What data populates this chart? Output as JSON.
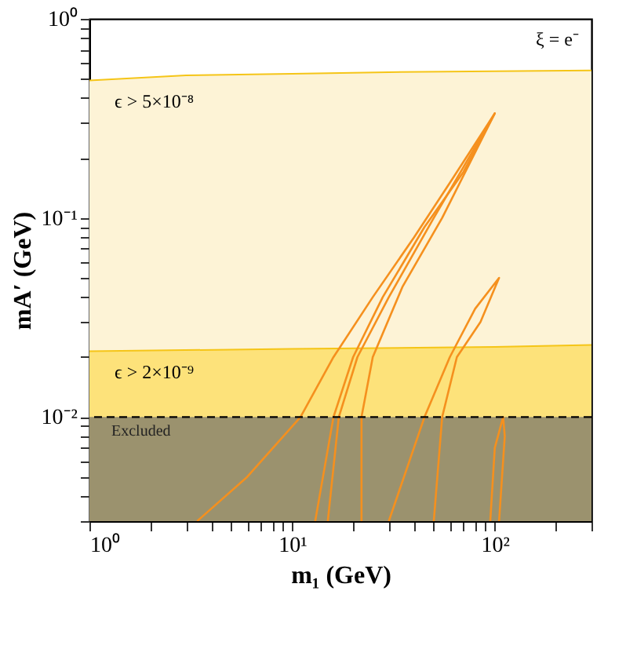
{
  "chart_data": {
    "type": "line",
    "xlabel": "m₁ (GeV)",
    "ylabel": "mA′ (GeV)",
    "log": "xy",
    "grid": false,
    "xlim": [
      1,
      300
    ],
    "ylim": [
      0.003,
      1
    ],
    "xticks": [
      {
        "value": 1,
        "label": "10⁰"
      },
      {
        "value": 2,
        "label": null
      },
      {
        "value": 3,
        "label": null
      },
      {
        "value": 4,
        "label": null
      },
      {
        "value": 5,
        "label": null
      },
      {
        "value": 6,
        "label": null
      },
      {
        "value": 7,
        "label": null
      },
      {
        "value": 8,
        "label": null
      },
      {
        "value": 9,
        "label": null
      },
      {
        "value": 10,
        "label": "10¹"
      },
      {
        "value": 20,
        "label": null
      },
      {
        "value": 30,
        "label": null
      },
      {
        "value": 40,
        "label": null
      },
      {
        "value": 50,
        "label": null
      },
      {
        "value": 60,
        "label": null
      },
      {
        "value": 70,
        "label": null
      },
      {
        "value": 80,
        "label": null
      },
      {
        "value": 90,
        "label": null
      },
      {
        "value": 100,
        "label": "10²"
      },
      {
        "value": 200,
        "label": null
      },
      {
        "value": 300,
        "label": null
      }
    ],
    "yticks": [
      {
        "value": 0.003,
        "label": null
      },
      {
        "value": 0.004,
        "label": null
      },
      {
        "value": 0.005,
        "label": null
      },
      {
        "value": 0.006,
        "label": null
      },
      {
        "value": 0.007,
        "label": null
      },
      {
        "value": 0.008,
        "label": null
      },
      {
        "value": 0.009,
        "label": null
      },
      {
        "value": 0.01,
        "label": "10⁻²"
      },
      {
        "value": 0.02,
        "label": null
      },
      {
        "value": 0.03,
        "label": null
      },
      {
        "value": 0.04,
        "label": null
      },
      {
        "value": 0.05,
        "label": null
      },
      {
        "value": 0.06,
        "label": null
      },
      {
        "value": 0.07,
        "label": null
      },
      {
        "value": 0.08,
        "label": null
      },
      {
        "value": 0.09,
        "label": null
      },
      {
        "value": 0.1,
        "label": "10⁻¹"
      },
      {
        "value": 0.2,
        "label": null
      },
      {
        "value": 0.3,
        "label": null
      },
      {
        "value": 0.4,
        "label": null
      },
      {
        "value": 0.5,
        "label": null
      },
      {
        "value": 0.6,
        "label": null
      },
      {
        "value": 0.7,
        "label": null
      },
      {
        "value": 0.8,
        "label": null
      },
      {
        "value": 0.9,
        "label": null
      },
      {
        "value": 1,
        "label": "10⁰"
      }
    ],
    "series": [
      {
        "type": "area",
        "color": "#fdf3d6",
        "x": [
          1,
          3,
          10,
          30,
          100,
          300
        ],
        "values": [
          0.49,
          0.52,
          0.53,
          0.54,
          0.545,
          0.55
        ]
      },
      {
        "type": "area",
        "color": "#fde27a",
        "x": [
          1,
          10,
          100,
          300
        ],
        "values": [
          0.0214,
          0.022,
          0.0225,
          0.023
        ]
      },
      {
        "color": "#f5901e",
        "x": [
          3.4,
          6,
          11,
          16,
          25,
          40,
          60,
          100,
          70,
          45,
          28,
          20,
          16,
          13
        ],
        "values": [
          0.003,
          0.005,
          0.01,
          0.02,
          0.04,
          0.08,
          0.15,
          0.335,
          0.17,
          0.09,
          0.04,
          0.02,
          0.01,
          0.003
        ]
      },
      {
        "color": "#f5901e",
        "x": [
          15,
          17,
          21,
          30,
          50,
          100,
          55,
          35,
          25,
          22,
          22
        ],
        "values": [
          0.003,
          0.01,
          0.02,
          0.04,
          0.1,
          0.335,
          0.1,
          0.045,
          0.02,
          0.01,
          0.003
        ]
      },
      {
        "color": "#f5901e",
        "x": [
          30,
          45,
          60,
          80,
          105,
          85,
          65,
          55,
          50
        ],
        "values": [
          0.003,
          0.01,
          0.02,
          0.035,
          0.05,
          0.03,
          0.02,
          0.01,
          0.003
        ]
      },
      {
        "color": "#f5901e",
        "x": [
          95,
          100,
          110,
          112,
          105
        ],
        "values": [
          0.003,
          0.007,
          0.01,
          0.008,
          0.003
        ]
      }
    ],
    "ref_lines": [
      {
        "axis": "y",
        "value": 0.01,
        "color": "#000000",
        "line_style": "dashed"
      }
    ],
    "bands": [
      {
        "axis": "y",
        "from": 0.003,
        "to": 0.01,
        "label": "Excluded",
        "color": "#8a846c"
      }
    ],
    "annotations": [
      "ξ = e⁻",
      "ϵ > 5×10⁻⁸",
      "ϵ > 2×10⁻⁹"
    ]
  }
}
